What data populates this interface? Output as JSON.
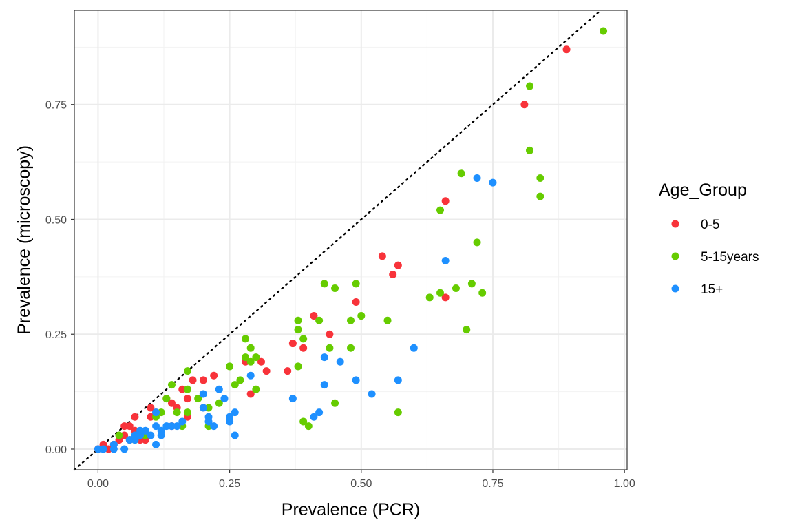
{
  "chart_data": {
    "type": "scatter",
    "xlabel": "Prevalence (PCR)",
    "ylabel": "Prevalence (microscopy)",
    "xlim": [
      -0.045,
      1.005
    ],
    "ylim": [
      -0.045,
      0.955
    ],
    "x_ticks": [
      "0.00",
      "0.25",
      "0.50",
      "0.75",
      "1.00"
    ],
    "y_ticks": [
      "0.00",
      "0.25",
      "0.50",
      "0.75"
    ],
    "grid": true,
    "reference_line": "y = x (dotted)",
    "legend": {
      "title": "Age_Group",
      "placement": "right"
    },
    "series": [
      {
        "name": "0-5",
        "color": "#F8333A",
        "points": [
          [
            0.0,
            0.0
          ],
          [
            0.01,
            0.01
          ],
          [
            0.02,
            0.0
          ],
          [
            0.03,
            0.01
          ],
          [
            0.04,
            0.02
          ],
          [
            0.05,
            0.05
          ],
          [
            0.05,
            0.03
          ],
          [
            0.06,
            0.05
          ],
          [
            0.06,
            0.02
          ],
          [
            0.07,
            0.04
          ],
          [
            0.07,
            0.07
          ],
          [
            0.08,
            0.02
          ],
          [
            0.09,
            0.02
          ],
          [
            0.1,
            0.07
          ],
          [
            0.1,
            0.09
          ],
          [
            0.11,
            0.08
          ],
          [
            0.13,
            0.11
          ],
          [
            0.14,
            0.1
          ],
          [
            0.14,
            0.05
          ],
          [
            0.15,
            0.09
          ],
          [
            0.16,
            0.13
          ],
          [
            0.17,
            0.11
          ],
          [
            0.17,
            0.07
          ],
          [
            0.18,
            0.15
          ],
          [
            0.2,
            0.09
          ],
          [
            0.2,
            0.15
          ],
          [
            0.22,
            0.16
          ],
          [
            0.28,
            0.19
          ],
          [
            0.29,
            0.12
          ],
          [
            0.31,
            0.19
          ],
          [
            0.32,
            0.17
          ],
          [
            0.36,
            0.17
          ],
          [
            0.37,
            0.23
          ],
          [
            0.39,
            0.22
          ],
          [
            0.41,
            0.29
          ],
          [
            0.44,
            0.25
          ],
          [
            0.49,
            0.32
          ],
          [
            0.54,
            0.42
          ],
          [
            0.56,
            0.38
          ],
          [
            0.57,
            0.4
          ],
          [
            0.66,
            0.54
          ],
          [
            0.66,
            0.33
          ],
          [
            0.81,
            0.75
          ],
          [
            0.89,
            0.87
          ]
        ]
      },
      {
        "name": "5-15years",
        "color": "#66CC00",
        "points": [
          [
            0.04,
            0.03
          ],
          [
            0.07,
            0.02
          ],
          [
            0.09,
            0.03
          ],
          [
            0.11,
            0.07
          ],
          [
            0.12,
            0.08
          ],
          [
            0.13,
            0.11
          ],
          [
            0.14,
            0.14
          ],
          [
            0.15,
            0.08
          ],
          [
            0.16,
            0.05
          ],
          [
            0.17,
            0.08
          ],
          [
            0.17,
            0.13
          ],
          [
            0.17,
            0.17
          ],
          [
            0.19,
            0.11
          ],
          [
            0.21,
            0.09
          ],
          [
            0.21,
            0.05
          ],
          [
            0.23,
            0.1
          ],
          [
            0.25,
            0.18
          ],
          [
            0.26,
            0.14
          ],
          [
            0.27,
            0.15
          ],
          [
            0.28,
            0.24
          ],
          [
            0.28,
            0.2
          ],
          [
            0.29,
            0.19
          ],
          [
            0.29,
            0.22
          ],
          [
            0.3,
            0.2
          ],
          [
            0.3,
            0.13
          ],
          [
            0.38,
            0.28
          ],
          [
            0.38,
            0.26
          ],
          [
            0.38,
            0.18
          ],
          [
            0.39,
            0.24
          ],
          [
            0.39,
            0.06
          ],
          [
            0.4,
            0.05
          ],
          [
            0.42,
            0.28
          ],
          [
            0.43,
            0.36
          ],
          [
            0.44,
            0.22
          ],
          [
            0.45,
            0.35
          ],
          [
            0.45,
            0.1
          ],
          [
            0.48,
            0.28
          ],
          [
            0.48,
            0.22
          ],
          [
            0.49,
            0.36
          ],
          [
            0.5,
            0.29
          ],
          [
            0.55,
            0.28
          ],
          [
            0.57,
            0.08
          ],
          [
            0.63,
            0.33
          ],
          [
            0.65,
            0.52
          ],
          [
            0.65,
            0.34
          ],
          [
            0.68,
            0.35
          ],
          [
            0.69,
            0.6
          ],
          [
            0.7,
            0.26
          ],
          [
            0.71,
            0.36
          ],
          [
            0.72,
            0.45
          ],
          [
            0.73,
            0.34
          ],
          [
            0.82,
            0.79
          ],
          [
            0.82,
            0.65
          ],
          [
            0.84,
            0.55
          ],
          [
            0.84,
            0.59
          ],
          [
            0.96,
            0.91
          ]
        ]
      },
      {
        "name": "15+",
        "color": "#1E90FF",
        "points": [
          [
            0.0,
            0.0
          ],
          [
            0.01,
            0.0
          ],
          [
            0.03,
            0.0
          ],
          [
            0.03,
            0.01
          ],
          [
            0.05,
            0.0
          ],
          [
            0.06,
            0.02
          ],
          [
            0.07,
            0.02
          ],
          [
            0.07,
            0.03
          ],
          [
            0.08,
            0.03
          ],
          [
            0.08,
            0.04
          ],
          [
            0.09,
            0.04
          ],
          [
            0.1,
            0.03
          ],
          [
            0.11,
            0.01
          ],
          [
            0.11,
            0.05
          ],
          [
            0.11,
            0.08
          ],
          [
            0.12,
            0.04
          ],
          [
            0.12,
            0.03
          ],
          [
            0.13,
            0.05
          ],
          [
            0.14,
            0.05
          ],
          [
            0.15,
            0.05
          ],
          [
            0.16,
            0.06
          ],
          [
            0.2,
            0.09
          ],
          [
            0.2,
            0.12
          ],
          [
            0.21,
            0.07
          ],
          [
            0.21,
            0.06
          ],
          [
            0.22,
            0.05
          ],
          [
            0.23,
            0.13
          ],
          [
            0.24,
            0.11
          ],
          [
            0.25,
            0.06
          ],
          [
            0.25,
            0.07
          ],
          [
            0.26,
            0.03
          ],
          [
            0.26,
            0.08
          ],
          [
            0.29,
            0.16
          ],
          [
            0.37,
            0.11
          ],
          [
            0.41,
            0.07
          ],
          [
            0.42,
            0.08
          ],
          [
            0.43,
            0.2
          ],
          [
            0.43,
            0.14
          ],
          [
            0.46,
            0.19
          ],
          [
            0.49,
            0.15
          ],
          [
            0.52,
            0.12
          ],
          [
            0.57,
            0.15
          ],
          [
            0.6,
            0.22
          ],
          [
            0.66,
            0.41
          ],
          [
            0.72,
            0.59
          ],
          [
            0.75,
            0.58
          ]
        ]
      }
    ]
  }
}
